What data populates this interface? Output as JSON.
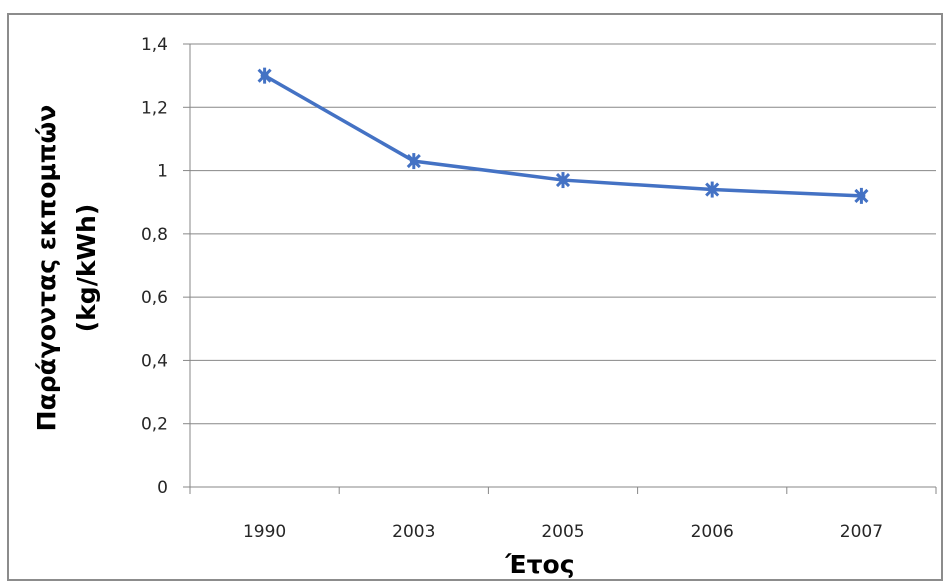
{
  "chart_data": {
    "type": "line",
    "categories": [
      "1990",
      "2003",
      "2005",
      "2006",
      "2007"
    ],
    "series": [
      {
        "values": [
          1.3,
          1.03,
          0.97,
          0.94,
          0.92
        ],
        "color": "#4472c4",
        "marker": "star"
      }
    ],
    "title": "",
    "xlabel": "Έτος",
    "ylabel_line1": "Παράγοντας εκπομπών",
    "ylabel_line2": "(kg/kWh)",
    "ylim": [
      0,
      1.4
    ],
    "yticks": [
      {
        "value": 0,
        "label": "0"
      },
      {
        "value": 0.2,
        "label": "0,2"
      },
      {
        "value": 0.4,
        "label": "0,4"
      },
      {
        "value": 0.6,
        "label": "0,6"
      },
      {
        "value": 0.8,
        "label": "0,8"
      },
      {
        "value": 1.0,
        "label": "1"
      },
      {
        "value": 1.2,
        "label": "1,2"
      },
      {
        "value": 1.4,
        "label": "1,4"
      }
    ],
    "grid": true,
    "legend": "none",
    "colors": {
      "line": "#4472c4",
      "grid": "#878787",
      "frame": "#8c8c8c"
    }
  }
}
